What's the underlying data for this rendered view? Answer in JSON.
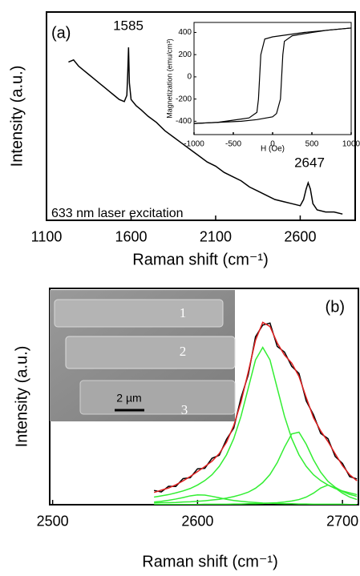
{
  "chart_data": [
    {
      "type": "line",
      "x_label": "Raman shift (cm⁻¹)",
      "y_label": "Intensity (a.u.)",
      "annotations": [
        "(a)",
        "1585",
        "2647",
        "633 nm laser excitation"
      ],
      "xlim": [
        1100,
        2925
      ],
      "xticks": [
        1100,
        1600,
        2100,
        2600
      ],
      "ylim": [
        0,
        100
      ],
      "x": [
        1230,
        1260,
        1290,
        1320,
        1350,
        1380,
        1410,
        1440,
        1470,
        1500,
        1530,
        1560,
        1575,
        1580,
        1585,
        1590,
        1600,
        1630,
        1660,
        1700,
        1750,
        1800,
        1850,
        1900,
        1950,
        2000,
        2050,
        2100,
        2150,
        2200,
        2250,
        2300,
        2350,
        2400,
        2450,
        2500,
        2550,
        2600,
        2620,
        2635,
        2647,
        2660,
        2675,
        2700,
        2750,
        2800,
        2850
      ],
      "series": [
        {
          "color": "#000000",
          "values": [
            76,
            77,
            74,
            72,
            70,
            68,
            66,
            64,
            62,
            60,
            58,
            57,
            60,
            70,
            83,
            66,
            58,
            55,
            53,
            50,
            47,
            43,
            40,
            37,
            34,
            31,
            28,
            26,
            23,
            21,
            19,
            16,
            14,
            12,
            10,
            9,
            8,
            7,
            10,
            15,
            18,
            15,
            8,
            5,
            4,
            4,
            3
          ]
        }
      ]
    },
    {
      "type": "line",
      "x_label": "H (Oe)",
      "y_label": "Magnetization (emu/cm³)",
      "xlim": [
        -1000,
        1000
      ],
      "xticks": [
        -1000,
        -500,
        0,
        500,
        1000
      ],
      "ylim": [
        -520,
        490
      ],
      "yticks": [
        -400,
        -200,
        0,
        200,
        400
      ],
      "series": [
        {
          "color": "#000000",
          "x": [
            1000,
            700,
            400,
            200,
            0,
            -100,
            -150,
            -180,
            -200,
            -300,
            -500,
            -700,
            -1000
          ],
          "values": [
            440,
            420,
            400,
            380,
            360,
            340,
            200,
            -200,
            -320,
            -370,
            -390,
            -410,
            -420
          ]
        },
        {
          "color": "#000000",
          "x": [
            -1000,
            -700,
            -400,
            -200,
            0,
            50,
            100,
            130,
            150,
            250,
            500,
            700,
            1000
          ],
          "values": [
            -420,
            -410,
            -400,
            -385,
            -360,
            -330,
            -200,
            200,
            320,
            370,
            400,
            420,
            440
          ]
        }
      ]
    },
    {
      "type": "line",
      "x_label": "Raman shift (cm⁻¹)",
      "y_label": "Intensity (a.u.)",
      "annotations": [
        "(b)",
        "1",
        "2",
        "3",
        "2 µm"
      ],
      "xlim": [
        2498,
        2711
      ],
      "xticks": [
        2500,
        2600,
        2700
      ],
      "ylim": [
        0,
        88
      ],
      "x": [
        2570,
        2575,
        2580,
        2585,
        2590,
        2595,
        2600,
        2605,
        2610,
        2615,
        2620,
        2625,
        2630,
        2635,
        2640,
        2645,
        2650,
        2655,
        2660,
        2665,
        2670,
        2675,
        2680,
        2685,
        2690,
        2695,
        2700,
        2705,
        2710
      ],
      "series": [
        {
          "color": "#33ee33",
          "values": [
            3.1,
            3.6,
            4.1,
            4.8,
            5.6,
            6.6,
            8.0,
            9.8,
            12.2,
            15.6,
            20.3,
            26.9,
            36.0,
            47.4,
            58.9,
            64,
            58.9,
            47.4,
            36.0,
            26.9,
            20.3,
            15.6,
            12.2,
            9.8,
            8.0,
            6.6,
            5.6,
            4.8,
            4.1
          ]
        },
        {
          "color": "#33ee33",
          "values": [
            0.7,
            0.8,
            0.8,
            0.9,
            1.1,
            1.2,
            1.4,
            1.6,
            1.9,
            2.2,
            2.7,
            3.3,
            4.1,
            5.1,
            6.7,
            9.0,
            12.3,
            17.1,
            23.4,
            28.8,
            29.5,
            24.6,
            18.3,
            13.2,
            9.5,
            7.1,
            5.4,
            4.2,
            3.4
          ]
        },
        {
          "color": "#33ee33",
          "values": [
            0.1,
            0.1,
            0.1,
            0.1,
            0.1,
            0.1,
            0.1,
            0.2,
            0.2,
            0.2,
            0.2,
            0.3,
            0.3,
            0.4,
            0.4,
            0.5,
            0.7,
            0.8,
            1.1,
            1.5,
            2.1,
            3.1,
            4.7,
            6.8,
            8,
            6.8,
            4.7,
            3.1,
            2.1
          ]
        },
        {
          "color": "#33ee33",
          "values": [
            1.1,
            1.4,
            1.8,
            2.3,
            2.9,
            3.6,
            4.0,
            3.9,
            3.4,
            2.8,
            2.2,
            1.7,
            1.4,
            1.1,
            0.9,
            0.7,
            0.6,
            0.5,
            0.4,
            0.4,
            0.3,
            0.3,
            0.2,
            0.2,
            0.2,
            0.2,
            0.2,
            0.1,
            0.1
          ]
        },
        {
          "color": "#000000",
          "values": [
            5.8,
            5.2,
            7.5,
            7.4,
            10.6,
            11.0,
            14.6,
            14.8,
            18.9,
            20.1,
            26.6,
            31.2,
            43.5,
            52.8,
            68.3,
            73.1,
            73.9,
            64.4,
            62.1,
            56.3,
            53.4,
            42.2,
            36.6,
            29.0,
            26.9,
            19.6,
            16.8,
            11.4,
            10.5
          ]
        },
        {
          "color": "#e02020",
          "values": [
            5.0,
            5.9,
            6.8,
            8.1,
            9.7,
            11.5,
            13.5,
            15.5,
            17.7,
            20.8,
            25.4,
            32.2,
            41.8,
            54.0,
            66.9,
            74.2,
            72.5,
            65.8,
            60.9,
            57.6,
            52.2,
            43.6,
            35.4,
            30.0,
            25.7,
            20.7,
            15.9,
            12.2,
            9.7
          ]
        }
      ]
    }
  ]
}
